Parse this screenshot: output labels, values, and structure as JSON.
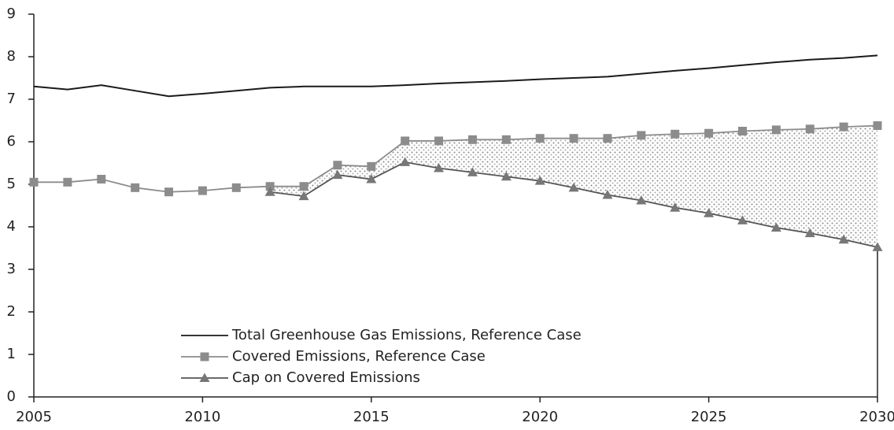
{
  "chart_data": {
    "type": "line",
    "x": [
      2005,
      2006,
      2007,
      2008,
      2009,
      2010,
      2011,
      2012,
      2013,
      2014,
      2015,
      2016,
      2017,
      2018,
      2019,
      2020,
      2021,
      2022,
      2023,
      2024,
      2025,
      2026,
      2027,
      2028,
      2029,
      2030
    ],
    "series": [
      {
        "name": "Total Greenhouse Gas Emissions, Reference Case",
        "color": "#1a1a1a",
        "marker": "none",
        "values": [
          7.3,
          7.23,
          7.33,
          7.2,
          7.07,
          7.13,
          7.2,
          7.27,
          7.3,
          7.3,
          7.3,
          7.33,
          7.37,
          7.4,
          7.43,
          7.47,
          7.5,
          7.53,
          7.6,
          7.67,
          7.73,
          7.8,
          7.87,
          7.93,
          7.97,
          8.03
        ]
      },
      {
        "name": "Covered Emissions, Reference Case",
        "color": "#8c8c8c",
        "marker": "square",
        "values": [
          5.05,
          5.05,
          5.12,
          4.92,
          4.82,
          4.85,
          4.92,
          4.95,
          4.95,
          5.45,
          5.42,
          6.02,
          6.02,
          6.05,
          6.05,
          6.08,
          6.08,
          6.08,
          6.15,
          6.18,
          6.2,
          6.25,
          6.28,
          6.3,
          6.35,
          6.38
        ]
      },
      {
        "name": "Cap on Covered Emissions",
        "color": "#555555",
        "marker": "triangle",
        "values": [
          null,
          null,
          null,
          null,
          null,
          null,
          null,
          4.82,
          4.72,
          5.22,
          5.12,
          5.52,
          5.38,
          5.28,
          5.18,
          5.08,
          4.92,
          4.75,
          4.62,
          4.45,
          4.32,
          4.15,
          3.98,
          3.85,
          3.7,
          3.52
        ]
      }
    ],
    "xlim": [
      2005,
      2030
    ],
    "xticks": [
      2005,
      2010,
      2015,
      2020,
      2025,
      2030
    ],
    "ylim": [
      0,
      9
    ],
    "yticks": [
      0,
      1,
      2,
      3,
      4,
      5,
      6,
      7,
      8,
      9
    ],
    "legend": "lower left"
  }
}
